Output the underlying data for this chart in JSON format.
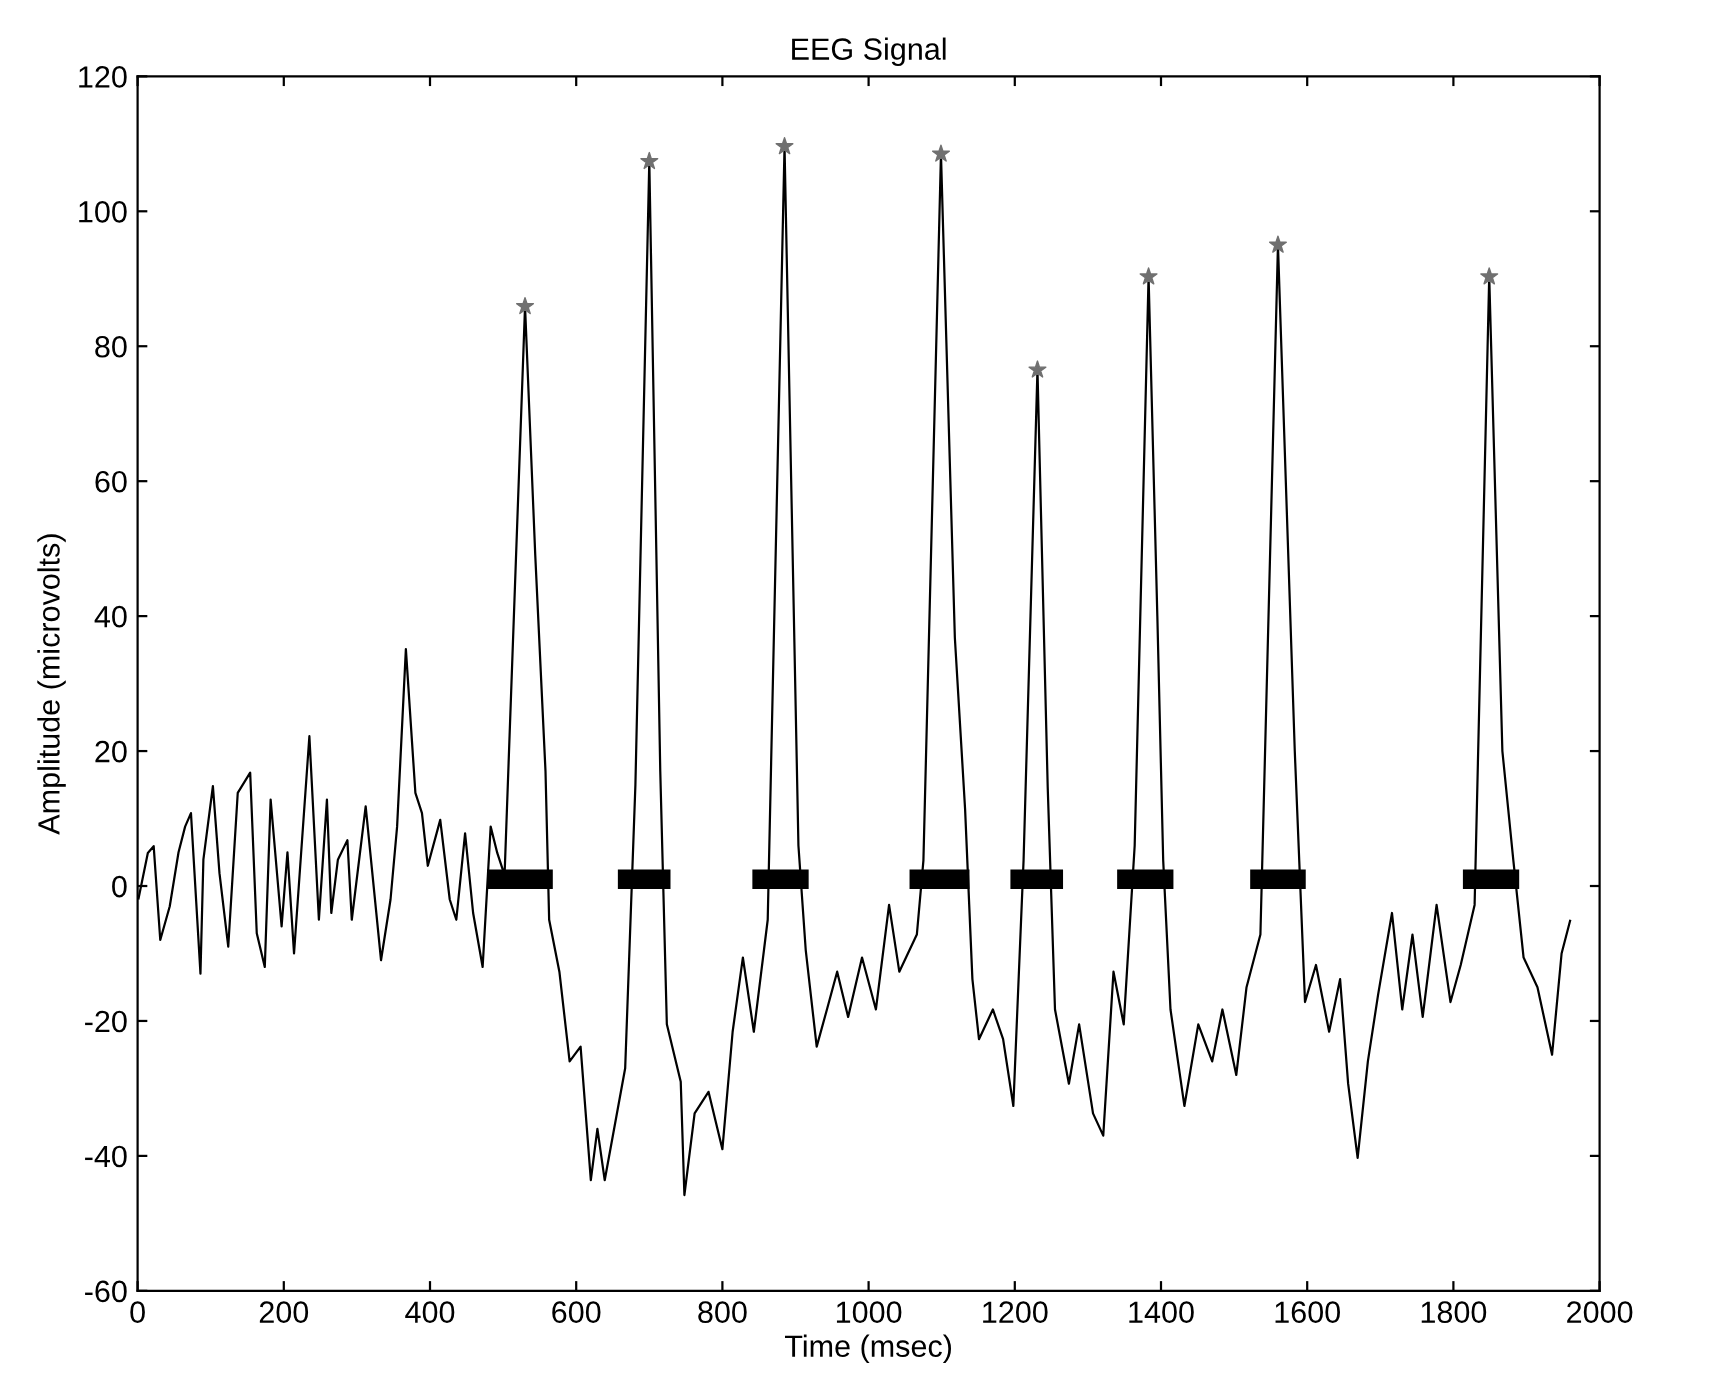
{
  "chart_data": {
    "type": "line",
    "title": "EEG Signal",
    "xlabel": "Time (msec)",
    "ylabel": "Amplitude (microvolts)",
    "xlim": [
      0,
      2000
    ],
    "ylim": [
      -60,
      120
    ],
    "xticks": [
      0,
      200,
      400,
      600,
      800,
      1000,
      1200,
      1400,
      1600,
      1800,
      2000
    ],
    "yticks": [
      -60,
      -40,
      -20,
      0,
      20,
      40,
      60,
      80,
      100,
      120
    ],
    "grid": false,
    "legend": false,
    "series": [
      {
        "color": "#000000",
        "marker": "none",
        "line_style": "solid",
        "x": [
          1,
          14,
          22,
          31,
          44,
          56,
          65,
          73,
          86,
          90,
          103,
          112,
          124,
          137,
          154,
          163,
          174,
          182,
          197,
          205,
          214,
          235,
          248,
          259,
          265,
          274,
          287,
          293,
          312,
          333,
          346,
          355,
          367,
          380,
          389,
          397,
          414,
          427,
          436,
          448,
          459,
          472,
          483,
          492,
          502,
          530,
          544,
          558,
          563,
          577,
          591,
          606,
          620,
          629,
          639,
          667,
          681,
          700,
          715,
          724,
          743,
          748,
          762,
          781,
          800,
          814,
          828,
          843,
          862,
          885,
          904,
          914,
          929,
          943,
          957,
          972,
          991,
          1010,
          1028,
          1042,
          1066,
          1075,
          1099,
          1118,
          1132,
          1142,
          1151,
          1170,
          1184,
          1198,
          1212,
          1231,
          1245,
          1255,
          1274,
          1288,
          1307,
          1321,
          1335,
          1349,
          1364,
          1383,
          1395,
          1403,
          1413,
          1432,
          1451,
          1470,
          1484,
          1503,
          1517,
          1536,
          1560,
          1583,
          1597,
          1612,
          1630,
          1645,
          1656,
          1669,
          1683,
          1697,
          1716,
          1730,
          1744,
          1758,
          1777,
          1796,
          1810,
          1829,
          1849,
          1867,
          1882,
          1896,
          1915,
          1935,
          1948,
          1960
        ],
        "values": [
          -2,
          4.9,
          5.9,
          -8,
          -3,
          5,
          8.8,
          10.8,
          -13,
          3.9,
          14.8,
          1.9,
          -9,
          13.8,
          16.8,
          -7,
          -12,
          12.8,
          -6,
          5,
          -10,
          22.2,
          -5,
          12.8,
          -4,
          3.9,
          6.8,
          -5,
          11.8,
          -11,
          -2,
          8.8,
          35.1,
          13.8,
          10.8,
          3,
          9.8,
          -2,
          -5,
          7.8,
          -4,
          -12,
          8.8,
          4.9,
          1.6,
          85.9,
          49,
          17,
          -5,
          -12.7,
          -26,
          -23.8,
          -43.6,
          -36,
          -43.6,
          -27,
          15,
          107.4,
          17,
          -20.5,
          -29,
          -45.8,
          -33.7,
          -30.5,
          -39,
          -21.6,
          -10.6,
          -21.6,
          -5,
          109.6,
          6,
          -9.5,
          -23.8,
          -18.3,
          -12.7,
          -19.4,
          -10.6,
          -18.3,
          -2.8,
          -12.7,
          -7.2,
          3.8,
          108.5,
          36.8,
          11.4,
          -13.8,
          -22.7,
          -18.3,
          -22.7,
          -32.6,
          3.8,
          76.5,
          14.7,
          -18.3,
          -29.3,
          -20.5,
          -33.7,
          -37,
          -12.7,
          -20.5,
          6,
          90.3,
          40,
          3.8,
          -18.3,
          -32.6,
          -20.5,
          -26,
          -18.3,
          -28,
          -15,
          -7.2,
          95,
          20,
          -17.2,
          -11.7,
          -21.6,
          -13.8,
          -29.3,
          -40.3,
          -26,
          -16.1,
          -4,
          -18.3,
          -7.2,
          -19.4,
          -2.8,
          -17.2,
          -11.7,
          -2.8,
          90.3,
          20,
          3.8,
          -10.6,
          -15,
          -25,
          -10,
          -5
        ]
      },
      {
        "type": "scatter",
        "color": "#707070",
        "marker": "star",
        "x": [
          530,
          700,
          885,
          1099,
          1231,
          1383,
          1560,
          1849
        ],
        "values": [
          85.9,
          107.4,
          109.6,
          108.5,
          76.5,
          90.3,
          95,
          90.3
        ]
      },
      {
        "type": "line",
        "color": "#000000",
        "marker": "none",
        "line_style": "solid",
        "x": [
          478,
          568,
          612,
          657,
          729,
          785,
          841,
          918,
          987,
          1056,
          1138,
          1166,
          1194,
          1266,
          1303,
          1340,
          1417,
          1470,
          1522,
          1598,
          1705,
          1813,
          1890
        ],
        "values": [
          1,
          1,
          null,
          1,
          1,
          null,
          1,
          1,
          null,
          1,
          1,
          null,
          1,
          1,
          null,
          1,
          1,
          null,
          1,
          1,
          null,
          1,
          1
        ]
      }
    ]
  }
}
